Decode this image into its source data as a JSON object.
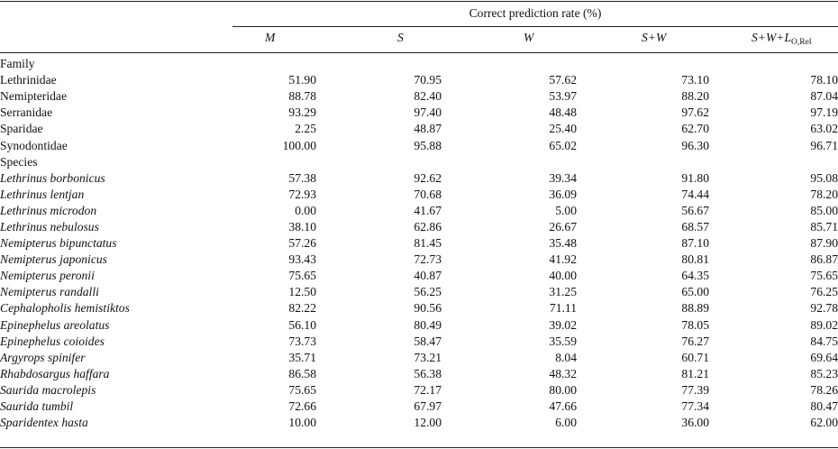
{
  "header": {
    "spanner": "Correct prediction rate (%)",
    "columns": [
      "M",
      "S",
      "W",
      "S+W",
      "S+W+L"
    ],
    "last_col_subscript": "O,Rel"
  },
  "sections": [
    {
      "label": "Family",
      "italic": false,
      "rows": [
        {
          "name": "Lethrinidae",
          "values": [
            "51.90",
            "70.95",
            "57.62",
            "73.10",
            "78.10"
          ]
        },
        {
          "name": "Nemipteridae",
          "values": [
            "88.78",
            "82.40",
            "53.97",
            "88.20",
            "87.04"
          ]
        },
        {
          "name": "Serranidae",
          "values": [
            "93.29",
            "97.40",
            "48.48",
            "97.62",
            "97.19"
          ]
        },
        {
          "name": "Sparidae",
          "values": [
            "2.25",
            "48.87",
            "25.40",
            "62.70",
            "63.02"
          ]
        },
        {
          "name": "Synodontidae",
          "values": [
            "100.00",
            "95.88",
            "65.02",
            "96.30",
            "96.71"
          ]
        }
      ]
    },
    {
      "label": "Species",
      "italic": true,
      "rows": [
        {
          "name": "Lethrinus borbonicus",
          "values": [
            "57.38",
            "92.62",
            "39.34",
            "91.80",
            "95.08"
          ]
        },
        {
          "name": "Lethrinus lentjan",
          "values": [
            "72.93",
            "70.68",
            "36.09",
            "74.44",
            "78.20"
          ]
        },
        {
          "name": "Lethrinus microdon",
          "values": [
            "0.00",
            "41.67",
            "5.00",
            "56.67",
            "85.00"
          ]
        },
        {
          "name": "Lethrinus nebulosus",
          "values": [
            "38.10",
            "62.86",
            "26.67",
            "68.57",
            "85.71"
          ]
        },
        {
          "name": "Nemipterus bipunctatus",
          "values": [
            "57.26",
            "81.45",
            "35.48",
            "87.10",
            "87.90"
          ]
        },
        {
          "name": "Nemipterus japonicus",
          "values": [
            "93.43",
            "72.73",
            "41.92",
            "80.81",
            "86.87"
          ]
        },
        {
          "name": "Nemipterus peronii",
          "values": [
            "75.65",
            "40.87",
            "40.00",
            "64.35",
            "75.65"
          ]
        },
        {
          "name": "Nemipterus randalli",
          "values": [
            "12.50",
            "56.25",
            "31.25",
            "65.00",
            "76.25"
          ]
        },
        {
          "name": "Cephalopholis hemistiktos",
          "values": [
            "82.22",
            "90.56",
            "71.11",
            "88.89",
            "92.78"
          ]
        },
        {
          "name": "Epinephelus areolatus",
          "values": [
            "56.10",
            "80.49",
            "39.02",
            "78.05",
            "89.02"
          ]
        },
        {
          "name": "Epinephelus coioides",
          "values": [
            "73.73",
            "58.47",
            "35.59",
            "76.27",
            "84.75"
          ]
        },
        {
          "name": "Argyrops spinifer",
          "values": [
            "35.71",
            "73.21",
            "8.04",
            "60.71",
            "69.64"
          ]
        },
        {
          "name": "Rhabdosargus haffara",
          "values": [
            "86.58",
            "56.38",
            "48.32",
            "81.21",
            "85.23"
          ]
        },
        {
          "name": "Saurida macrolepis",
          "values": [
            "75.65",
            "72.17",
            "80.00",
            "77.39",
            "78.26"
          ]
        },
        {
          "name": "Saurida tumbil",
          "values": [
            "72.66",
            "67.97",
            "47.66",
            "77.34",
            "80.47"
          ]
        },
        {
          "name": "Sparidentex hasta",
          "values": [
            "10.00",
            "12.00",
            "6.00",
            "36.00",
            "62.00"
          ]
        }
      ]
    }
  ]
}
